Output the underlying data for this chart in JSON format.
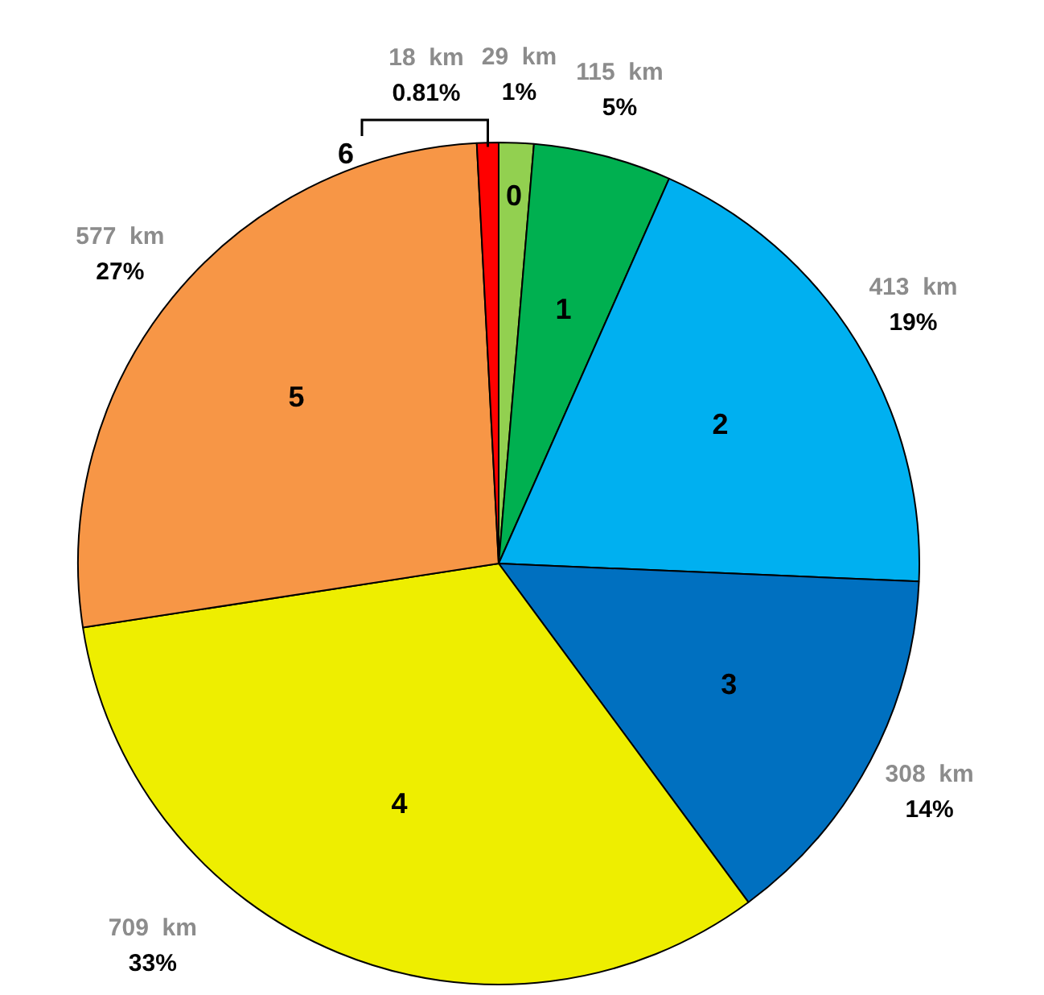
{
  "chart_data": {
    "type": "pie",
    "categories": [
      "0",
      "1",
      "2",
      "3",
      "4",
      "5",
      "6"
    ],
    "values": [
      29,
      115,
      413,
      308,
      709,
      577,
      18
    ],
    "colors": [
      "#92d050",
      "#00b050",
      "#00b0f0",
      "#0070c0",
      "#eeee00",
      "#f79646",
      "#ff0000"
    ],
    "value_labels": [
      "29  km",
      "115  km",
      "413  km",
      "308  km",
      "709  km",
      "577  km",
      "18  km"
    ],
    "annotations": [
      {
        "text": "1%",
        "x": "0"
      },
      {
        "text": "5%",
        "x": "1"
      },
      {
        "text": "19%",
        "x": "2"
      },
      {
        "text": "14%",
        "x": "3"
      },
      {
        "text": "33%",
        "x": "4"
      },
      {
        "text": "27%",
        "x": "5"
      },
      {
        "text": "0.81%",
        "x": "6"
      }
    ]
  }
}
